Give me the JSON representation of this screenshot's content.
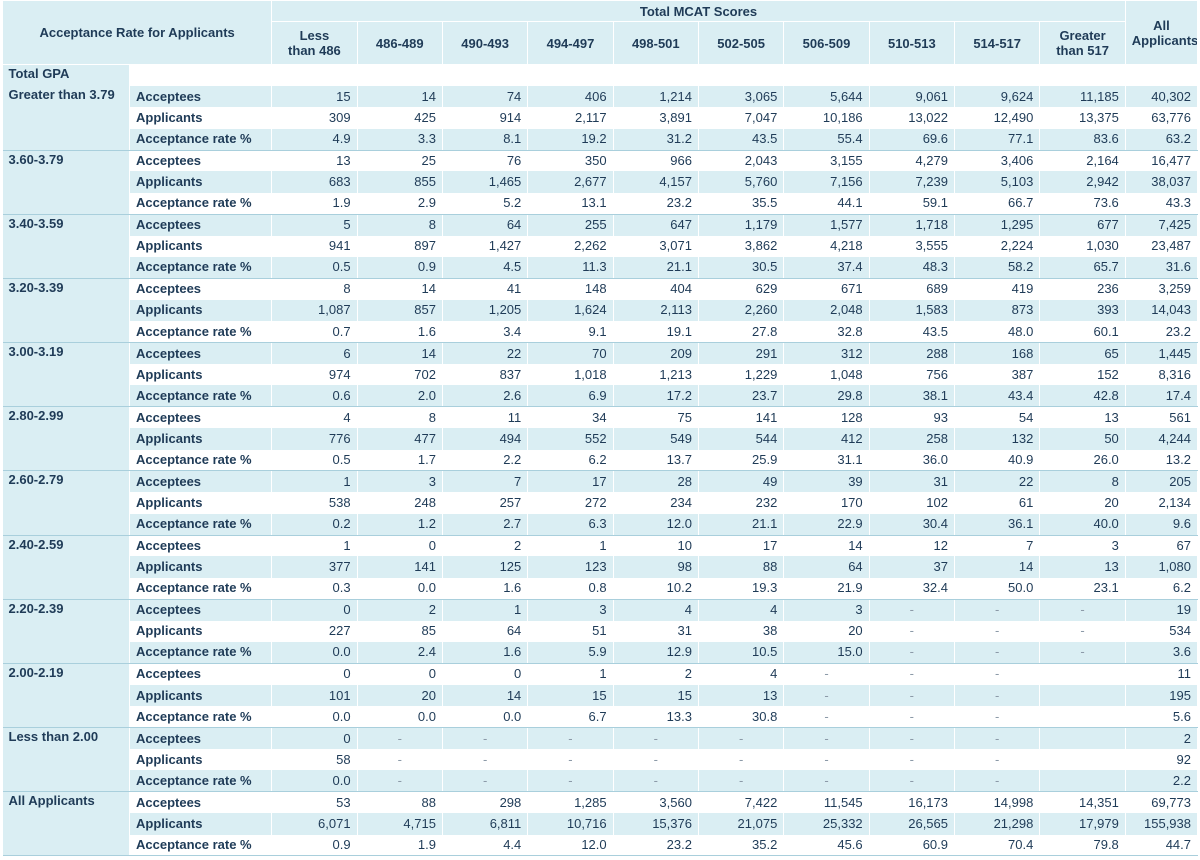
{
  "header": {
    "title": "Acceptance Rate for Applicants",
    "group_label": "Total MCAT Scores",
    "columns": [
      "Less than 486",
      "486-489",
      "490-493",
      "494-497",
      "498-501",
      "502-505",
      "506-509",
      "510-513",
      "514-517",
      "Greater than 517"
    ],
    "columns_lines": [
      [
        "Less",
        "than 486"
      ],
      [
        "486-489"
      ],
      [
        "490-493"
      ],
      [
        "494-497"
      ],
      [
        "498-501"
      ],
      [
        "502-505"
      ],
      [
        "506-509"
      ],
      [
        "510-513"
      ],
      [
        "514-517"
      ],
      [
        "Greater",
        "than 517"
      ]
    ],
    "all_col": [
      "All",
      "Applicants"
    ]
  },
  "section_label": "Total GPA",
  "row_labels": [
    "Acceptees",
    "Applicants",
    "Acceptance rate %"
  ],
  "groups": [
    {
      "gpa": "Greater than 3.79",
      "rows": [
        [
          "15",
          "14",
          "74",
          "406",
          "1,214",
          "3,065",
          "5,644",
          "9,061",
          "9,624",
          "11,185",
          "40,302"
        ],
        [
          "309",
          "425",
          "914",
          "2,117",
          "3,891",
          "7,047",
          "10,186",
          "13,022",
          "12,490",
          "13,375",
          "63,776"
        ],
        [
          "4.9",
          "3.3",
          "8.1",
          "19.2",
          "31.2",
          "43.5",
          "55.4",
          "69.6",
          "77.1",
          "83.6",
          "63.2"
        ]
      ]
    },
    {
      "gpa": "3.60-3.79",
      "rows": [
        [
          "13",
          "25",
          "76",
          "350",
          "966",
          "2,043",
          "3,155",
          "4,279",
          "3,406",
          "2,164",
          "16,477"
        ],
        [
          "683",
          "855",
          "1,465",
          "2,677",
          "4,157",
          "5,760",
          "7,156",
          "7,239",
          "5,103",
          "2,942",
          "38,037"
        ],
        [
          "1.9",
          "2.9",
          "5.2",
          "13.1",
          "23.2",
          "35.5",
          "44.1",
          "59.1",
          "66.7",
          "73.6",
          "43.3"
        ]
      ]
    },
    {
      "gpa": "3.40-3.59",
      "rows": [
        [
          "5",
          "8",
          "64",
          "255",
          "647",
          "1,179",
          "1,577",
          "1,718",
          "1,295",
          "677",
          "7,425"
        ],
        [
          "941",
          "897",
          "1,427",
          "2,262",
          "3,071",
          "3,862",
          "4,218",
          "3,555",
          "2,224",
          "1,030",
          "23,487"
        ],
        [
          "0.5",
          "0.9",
          "4.5",
          "11.3",
          "21.1",
          "30.5",
          "37.4",
          "48.3",
          "58.2",
          "65.7",
          "31.6"
        ]
      ]
    },
    {
      "gpa": "3.20-3.39",
      "rows": [
        [
          "8",
          "14",
          "41",
          "148",
          "404",
          "629",
          "671",
          "689",
          "419",
          "236",
          "3,259"
        ],
        [
          "1,087",
          "857",
          "1,205",
          "1,624",
          "2,113",
          "2,260",
          "2,048",
          "1,583",
          "873",
          "393",
          "14,043"
        ],
        [
          "0.7",
          "1.6",
          "3.4",
          "9.1",
          "19.1",
          "27.8",
          "32.8",
          "43.5",
          "48.0",
          "60.1",
          "23.2"
        ]
      ]
    },
    {
      "gpa": "3.00-3.19",
      "rows": [
        [
          "6",
          "14",
          "22",
          "70",
          "209",
          "291",
          "312",
          "288",
          "168",
          "65",
          "1,445"
        ],
        [
          "974",
          "702",
          "837",
          "1,018",
          "1,213",
          "1,229",
          "1,048",
          "756",
          "387",
          "152",
          "8,316"
        ],
        [
          "0.6",
          "2.0",
          "2.6",
          "6.9",
          "17.2",
          "23.7",
          "29.8",
          "38.1",
          "43.4",
          "42.8",
          "17.4"
        ]
      ]
    },
    {
      "gpa": "2.80-2.99",
      "rows": [
        [
          "4",
          "8",
          "11",
          "34",
          "75",
          "141",
          "128",
          "93",
          "54",
          "13",
          "561"
        ],
        [
          "776",
          "477",
          "494",
          "552",
          "549",
          "544",
          "412",
          "258",
          "132",
          "50",
          "4,244"
        ],
        [
          "0.5",
          "1.7",
          "2.2",
          "6.2",
          "13.7",
          "25.9",
          "31.1",
          "36.0",
          "40.9",
          "26.0",
          "13.2"
        ]
      ]
    },
    {
      "gpa": "2.60-2.79",
      "rows": [
        [
          "1",
          "3",
          "7",
          "17",
          "28",
          "49",
          "39",
          "31",
          "22",
          "8",
          "205"
        ],
        [
          "538",
          "248",
          "257",
          "272",
          "234",
          "232",
          "170",
          "102",
          "61",
          "20",
          "2,134"
        ],
        [
          "0.2",
          "1.2",
          "2.7",
          "6.3",
          "12.0",
          "21.1",
          "22.9",
          "30.4",
          "36.1",
          "40.0",
          "9.6"
        ]
      ]
    },
    {
      "gpa": "2.40-2.59",
      "rows": [
        [
          "1",
          "0",
          "2",
          "1",
          "10",
          "17",
          "14",
          "12",
          "7",
          "3",
          "67"
        ],
        [
          "377",
          "141",
          "125",
          "123",
          "98",
          "88",
          "64",
          "37",
          "14",
          "13",
          "1,080"
        ],
        [
          "0.3",
          "0.0",
          "1.6",
          "0.8",
          "10.2",
          "19.3",
          "21.9",
          "32.4",
          "50.0",
          "23.1",
          "6.2"
        ]
      ]
    },
    {
      "gpa": "2.20-2.39",
      "rows": [
        [
          "0",
          "2",
          "1",
          "3",
          "4",
          "4",
          "3",
          "-",
          "-",
          "-",
          "19"
        ],
        [
          "227",
          "85",
          "64",
          "51",
          "31",
          "38",
          "20",
          "-",
          "-",
          "-",
          "534"
        ],
        [
          "0.0",
          "2.4",
          "1.6",
          "5.9",
          "12.9",
          "10.5",
          "15.0",
          "-",
          "-",
          "-",
          "3.6"
        ]
      ]
    },
    {
      "gpa": "2.00-2.19",
      "rows": [
        [
          "0",
          "0",
          "0",
          "1",
          "2",
          "4",
          "-",
          "-",
          "-",
          "",
          "11"
        ],
        [
          "101",
          "20",
          "14",
          "15",
          "15",
          "13",
          "-",
          "-",
          "-",
          "",
          "195"
        ],
        [
          "0.0",
          "0.0",
          "0.0",
          "6.7",
          "13.3",
          "30.8",
          "-",
          "-",
          "-",
          "",
          "5.6"
        ]
      ]
    },
    {
      "gpa": "Less than 2.00",
      "rows": [
        [
          "0",
          "-",
          "-",
          "-",
          "-",
          "-",
          "-",
          "-",
          "-",
          "",
          "2"
        ],
        [
          "58",
          "-",
          "-",
          "-",
          "-",
          "-",
          "-",
          "-",
          "-",
          "",
          "92"
        ],
        [
          "0.0",
          "-",
          "-",
          "-",
          "-",
          "-",
          "-",
          "-",
          "-",
          "",
          "2.2"
        ]
      ]
    },
    {
      "gpa": "All Applicants",
      "rows": [
        [
          "53",
          "88",
          "298",
          "1,285",
          "3,560",
          "7,422",
          "11,545",
          "16,173",
          "14,998",
          "14,351",
          "69,773"
        ],
        [
          "6,071",
          "4,715",
          "6,811",
          "10,716",
          "15,376",
          "21,075",
          "25,332",
          "26,565",
          "21,298",
          "17,979",
          "155,938"
        ],
        [
          "0.9",
          "1.9",
          "4.4",
          "12.0",
          "23.2",
          "35.2",
          "45.6",
          "60.9",
          "70.4",
          "79.8",
          "44.7"
        ]
      ]
    }
  ],
  "colors": {
    "header_bg": "#daeef3",
    "text": "#1f3b57",
    "row_tint": "#daeef3",
    "rule": "#a9cfdc"
  }
}
